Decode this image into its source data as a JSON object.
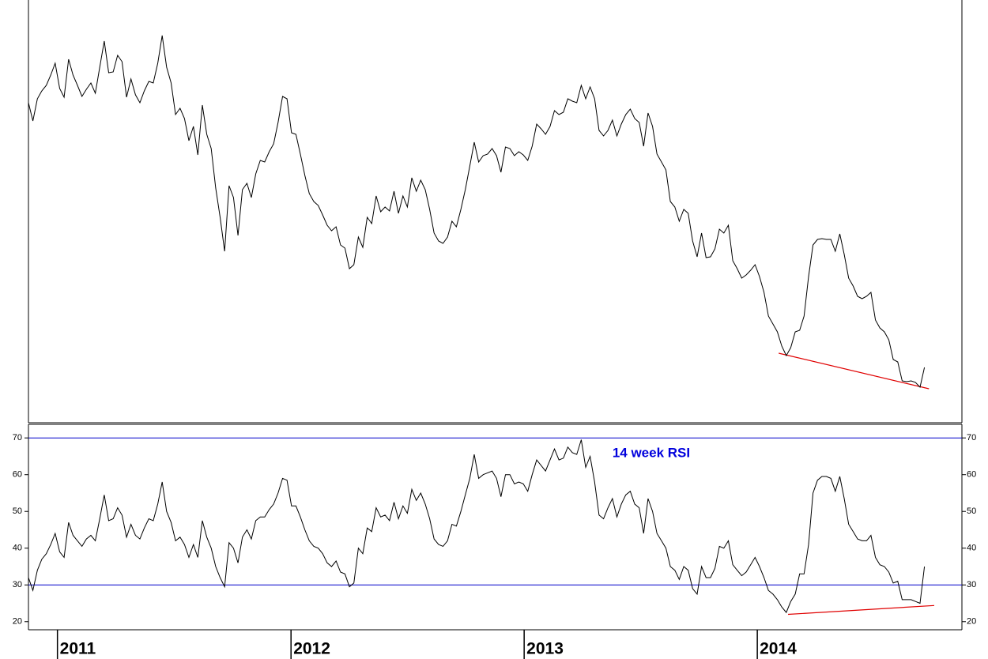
{
  "chart_data": [
    {
      "type": "line",
      "color": "#000000",
      "xlim": [
        0,
        209.4
      ],
      "ylim": [
        0,
        535
      ],
      "x": [
        0,
        1,
        2,
        3,
        4,
        5,
        6,
        7,
        8,
        9,
        10,
        11,
        12,
        13,
        14,
        15,
        16,
        17,
        18,
        19,
        20,
        21,
        22,
        23,
        24,
        25,
        26,
        27,
        28,
        29,
        30,
        31,
        32,
        33,
        34,
        35,
        36,
        37,
        38,
        39,
        40,
        41,
        42,
        43,
        44,
        45,
        46,
        47,
        48,
        49,
        50,
        51,
        52,
        53,
        54,
        55,
        56,
        57,
        58,
        59,
        60,
        61,
        62,
        63,
        64,
        65,
        66,
        67,
        68,
        69,
        70,
        71,
        72,
        73,
        74,
        75,
        76,
        77,
        78,
        79,
        80,
        81,
        82,
        83,
        84,
        85,
        86,
        87,
        88,
        89,
        90,
        91,
        92,
        93,
        94,
        95,
        96,
        97,
        98,
        99,
        100,
        101,
        102,
        103,
        104,
        105,
        106,
        107,
        108,
        109,
        110,
        111,
        112,
        113,
        114,
        115,
        116,
        117,
        118,
        119,
        120,
        121,
        122,
        123,
        124,
        125,
        126,
        127,
        128,
        129,
        130,
        131,
        132,
        133,
        134,
        135,
        136,
        137,
        138,
        139,
        140,
        141,
        142,
        143,
        144,
        145,
        146,
        147,
        148,
        149,
        150,
        151,
        152,
        153,
        154,
        155,
        156,
        157,
        158,
        159,
        160,
        161,
        162,
        163,
        164,
        165,
        166,
        167,
        168,
        169,
        170,
        171,
        172,
        173,
        174,
        175,
        176,
        177,
        178,
        179,
        180,
        181,
        182,
        183,
        184,
        185,
        186,
        187,
        188,
        189,
        190,
        191,
        192,
        193,
        194,
        195,
        196,
        197,
        198,
        199,
        200,
        201
      ],
      "values": [
        405,
        382,
        410,
        420,
        427,
        440,
        455,
        423,
        412,
        460,
        440,
        427,
        413,
        422,
        430,
        417,
        450,
        483,
        443,
        444,
        465,
        457,
        412,
        435,
        415,
        405,
        420,
        432,
        430,
        455,
        490,
        450,
        430,
        390,
        398,
        385,
        357,
        375,
        339,
        402,
        365,
        347,
        297,
        260,
        217,
        300,
        285,
        237,
        295,
        303,
        285,
        315,
        332,
        330,
        343,
        353,
        380,
        413,
        410,
        367,
        365,
        340,
        313,
        290,
        280,
        275,
        263,
        250,
        243,
        248,
        225,
        221,
        195,
        200,
        235,
        222,
        260,
        252,
        287,
        267,
        273,
        268,
        293,
        265,
        287,
        273,
        310,
        293,
        307,
        295,
        270,
        240,
        230,
        227,
        235,
        255,
        248,
        270,
        295,
        325,
        355,
        330,
        338,
        340,
        347,
        338,
        317,
        349,
        347,
        338,
        343,
        339,
        332,
        350,
        378,
        372,
        365,
        375,
        395,
        390,
        393,
        410,
        407,
        405,
        427,
        410,
        425,
        410,
        370,
        363,
        370,
        383,
        363,
        378,
        390,
        397,
        385,
        380,
        350,
        392,
        375,
        340,
        330,
        320,
        280,
        273,
        255,
        270,
        265,
        230,
        210,
        240,
        209,
        210,
        220,
        245,
        240,
        250,
        205,
        195,
        183,
        187,
        193,
        200,
        185,
        165,
        135,
        125,
        115,
        97,
        85,
        95,
        115,
        117,
        135,
        185,
        225,
        232,
        233,
        232,
        232,
        217,
        239,
        213,
        183,
        173,
        160,
        157,
        160,
        165,
        130,
        120,
        115,
        105,
        80,
        77,
        53,
        52,
        53,
        51,
        45,
        70
      ],
      "trendline": {
        "x": [
          168.3,
          202
        ],
        "values": [
          88,
          43
        ],
        "color": "#e00000"
      }
    },
    {
      "type": "line",
      "color": "#000000",
      "xlim": [
        0,
        209.4
      ],
      "ylim": [
        17.8,
        73.7
      ],
      "yticks": [
        20,
        30,
        40,
        50,
        60,
        70
      ],
      "xticks": [
        {
          "value": 6.5,
          "label": "2011"
        },
        {
          "value": 58.9,
          "label": "2012"
        },
        {
          "value": 111.2,
          "label": "2013"
        },
        {
          "value": 163.5,
          "label": "2014"
        }
      ],
      "hlines": [
        70,
        30
      ],
      "hline_color": "#0000cc",
      "annotation": {
        "text": "14 week RSI",
        "x": 131,
        "y": 65.7,
        "color": "#0000dd"
      },
      "x": [
        0,
        1,
        2,
        3,
        4,
        5,
        6,
        7,
        8,
        9,
        10,
        11,
        12,
        13,
        14,
        15,
        16,
        17,
        18,
        19,
        20,
        21,
        22,
        23,
        24,
        25,
        26,
        27,
        28,
        29,
        30,
        31,
        32,
        33,
        34,
        35,
        36,
        37,
        38,
        39,
        40,
        41,
        42,
        43,
        44,
        45,
        46,
        47,
        48,
        49,
        50,
        51,
        52,
        53,
        54,
        55,
        56,
        57,
        58,
        59,
        60,
        61,
        62,
        63,
        64,
        65,
        66,
        67,
        68,
        69,
        70,
        71,
        72,
        73,
        74,
        75,
        76,
        77,
        78,
        79,
        80,
        81,
        82,
        83,
        84,
        85,
        86,
        87,
        88,
        89,
        90,
        91,
        92,
        93,
        94,
        95,
        96,
        97,
        98,
        99,
        100,
        101,
        102,
        103,
        104,
        105,
        106,
        107,
        108,
        109,
        110,
        111,
        112,
        113,
        114,
        115,
        116,
        117,
        118,
        119,
        120,
        121,
        122,
        123,
        124,
        125,
        126,
        127,
        128,
        129,
        130,
        131,
        132,
        133,
        134,
        135,
        136,
        137,
        138,
        139,
        140,
        141,
        142,
        143,
        144,
        145,
        146,
        147,
        148,
        149,
        150,
        151,
        152,
        153,
        154,
        155,
        156,
        157,
        158,
        159,
        160,
        161,
        162,
        163,
        164,
        165,
        166,
        167,
        168,
        169,
        170,
        171,
        172,
        173,
        174,
        175,
        176,
        177,
        178,
        179,
        180,
        181,
        182,
        183,
        184,
        185,
        186,
        187,
        188,
        189,
        190,
        191,
        192,
        193,
        194,
        195,
        196,
        197,
        198,
        199,
        200,
        201
      ],
      "values": [
        32,
        28.5,
        34,
        37,
        38.5,
        41,
        44,
        39,
        37.5,
        47,
        43.5,
        42,
        40.5,
        42.5,
        43.5,
        42,
        48,
        54.5,
        47.5,
        48,
        51,
        49,
        43,
        46.5,
        43.5,
        42.5,
        45.5,
        48,
        47.5,
        52,
        58,
        50,
        47,
        42,
        43,
        41,
        37.5,
        41,
        37.5,
        47.5,
        43,
        40,
        35,
        32,
        29.5,
        41.5,
        40,
        36,
        43,
        45,
        42.5,
        47.5,
        48.5,
        48.5,
        50.5,
        52,
        55,
        59,
        58.5,
        51.5,
        51.5,
        48.5,
        45,
        42,
        40.5,
        40,
        38.5,
        36,
        35,
        36.5,
        33.5,
        33,
        29.5,
        30.5,
        40,
        38.5,
        45.5,
        44.5,
        51,
        48.5,
        49,
        47.5,
        52.5,
        48,
        51.5,
        49.5,
        56,
        53,
        55,
        52,
        48,
        42.5,
        41,
        40.5,
        42,
        46.5,
        46,
        50,
        54.5,
        59,
        65.5,
        59,
        60,
        60.5,
        61,
        59,
        54,
        60,
        60,
        57.5,
        58,
        57.5,
        55.5,
        60,
        64,
        62.5,
        61,
        64,
        67,
        64,
        64.5,
        67.5,
        66,
        65.5,
        69.5,
        62,
        65,
        58,
        49,
        48,
        51,
        53.5,
        48.5,
        52,
        54.5,
        55.5,
        52,
        51,
        44,
        53.5,
        50,
        44,
        42,
        40,
        35,
        34,
        31.5,
        35,
        34,
        29,
        27.5,
        35,
        32,
        32,
        34.5,
        40.5,
        40,
        42,
        35.5,
        34,
        32.5,
        33.5,
        35.5,
        37.5,
        35,
        32,
        28.5,
        27.5,
        26,
        24,
        22.5,
        25.5,
        27.5,
        33,
        33,
        41,
        55,
        58.5,
        59.5,
        59.5,
        59,
        55.5,
        59.5,
        53.5,
        46.5,
        44.5,
        42.5,
        42,
        42,
        43.5,
        37.5,
        35.5,
        35,
        33.5,
        30.5,
        31,
        26,
        26,
        26,
        25.5,
        25,
        35
      ],
      "trendline": {
        "x": [
          170.4,
          203.2
        ],
        "values": [
          22.0,
          24.4
        ],
        "color": "#e00000"
      }
    }
  ]
}
